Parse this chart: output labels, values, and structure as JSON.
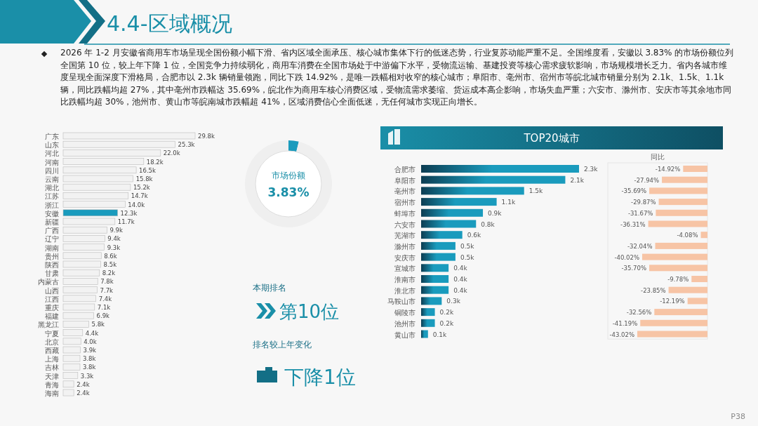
{
  "chart_data": [
    {
      "type": "other",
      "title": "4.4-区域概况",
      "annotations": [
        "2026 年 1-2 月安徽省商用车市场呈现全国份额小幅下滑、省内区域全面承压、核心城市集体下行的低迷态势，行业复苏动能严重不足。全国维度看，安徽以 3.83% 的市场份额位列全国第 10 位，较上年下降 1 位，全国竞争力持续弱化，商用车消费在全国市场处于中游偏下水平，受物流运输、基建投资等核心需求疲软影响，市场规模增长乏力。省内各城市维度呈现全面深度下滑格局，合肥市以 2.3k 辆销量领跑，同比下跌 14.92%，是唯一跌幅相对收窄的核心城市；阜阳市、亳州市、宿州市等皖北城市销量分别为 2.1k、1.5k、1.1k 辆，同比跌幅均超 27%，其中亳州市跌幅达 35.69%，皖北作为商用车核心消费区域，受物流需求萎缩、货运成本高企影响，市场失血严重；六安市、滁州市、安庆市等其余地市同比跌幅均超 30%，池州市、黄山市等皖南城市跌幅超 41%，区域消费信心全面低迷，无任何城市实现正向增长。",
        "P38"
      ]
    },
    {
      "type": "bar",
      "orientation": "horizontal",
      "categories": [
        "广东",
        "山东",
        "河北",
        "河南",
        "四川",
        "云南",
        "湖北",
        "江苏",
        "浙江",
        "安徽",
        "新疆",
        "广西",
        "辽宁",
        "湖南",
        "贵州",
        "陕西",
        "甘肃",
        "内蒙古",
        "山西",
        "江西",
        "重庆",
        "福建",
        "黑龙江",
        "宁夏",
        "北京",
        "西藏",
        "上海",
        "吉林",
        "天津",
        "青海",
        "海南"
      ],
      "values": [
        29.8,
        25.3,
        22.0,
        18.2,
        16.5,
        15.8,
        15.2,
        14.7,
        14.0,
        12.3,
        11.7,
        9.9,
        9.4,
        9.3,
        8.6,
        8.5,
        8.2,
        7.8,
        7.7,
        7.4,
        7.1,
        6.9,
        5.8,
        4.4,
        4.0,
        3.9,
        3.8,
        3.8,
        3.3,
        2.4,
        2.4
      ],
      "value_labels": [
        "29.8k",
        "25.3k",
        "22.0k",
        "18.2k",
        "16.5k",
        "15.8k",
        "15.2k",
        "14.7k",
        "14.0k",
        "12.3k",
        "11.7k",
        "9.9k",
        "9.4k",
        "9.3k",
        "8.6k",
        "8.5k",
        "8.2k",
        "7.8k",
        "7.7k",
        "7.4k",
        "7.1k",
        "6.9k",
        "5.8k",
        "4.4k",
        "4.0k",
        "3.9k",
        "3.8k",
        "3.8k",
        "3.3k",
        "2.4k",
        "2.4k"
      ],
      "colors": [
        "#f2f2f2",
        "#f2f2f2",
        "#f2f2f2",
        "#f2f2f2",
        "#f2f2f2",
        "#f2f2f2",
        "#f2f2f2",
        "#f2f2f2",
        "#f2f2f2",
        "#1a9bbd",
        "#f2f2f2",
        "#f2f2f2",
        "#f2f2f2",
        "#f2f2f2",
        "#f2f2f2",
        "#f2f2f2",
        "#f2f2f2",
        "#f2f2f2",
        "#f2f2f2",
        "#f2f2f2",
        "#f2f2f2",
        "#f2f2f2",
        "#f2f2f2",
        "#f2f2f2",
        "#f2f2f2",
        "#f2f2f2",
        "#f2f2f2",
        "#f2f2f2",
        "#f2f2f2",
        "#f2f2f2",
        "#f2f2f2"
      ]
    },
    {
      "type": "donut",
      "title": "市场份额",
      "categories": [
        null,
        null
      ],
      "values": [
        3.83,
        96.17
      ],
      "colors": [
        "#1a9bbd",
        "#efefef"
      ],
      "annotations": [
        "3.83%"
      ]
    },
    {
      "type": "other",
      "annotations": [
        "本期排名",
        "第10位",
        "排名较上年变化",
        "下降1位"
      ]
    },
    {
      "type": "bar",
      "orientation": "horizontal",
      "title": "TOP20城市",
      "categories": [
        "合肥市",
        "阜阳市",
        "亳州市",
        "宿州市",
        "蚌埠市",
        "六安市",
        "芜湖市",
        "滁州市",
        "安庆市",
        "宣城市",
        "淮南市",
        "淮北市",
        "马鞍山市",
        "铜陵市",
        "池州市",
        "黄山市"
      ],
      "values": [
        2.3,
        2.1,
        1.5,
        1.1,
        0.9,
        0.8,
        0.6,
        0.5,
        0.5,
        0.4,
        0.4,
        0.4,
        0.3,
        0.2,
        0.2,
        0.1
      ],
      "value_labels": [
        "2.3k",
        "2.1k",
        "1.5k",
        "1.1k",
        "0.9k",
        "0.8k",
        "0.6k",
        "0.5k",
        "0.5k",
        "0.4k",
        "0.4k",
        "0.4k",
        "0.3k",
        "0.2k",
        "0.2k",
        "0.1k"
      ],
      "color": "#1a9bbd"
    },
    {
      "type": "bar",
      "orientation": "horizontal",
      "title": "同比",
      "categories": [
        null,
        null,
        null,
        null,
        null,
        null,
        null,
        null,
        null,
        null,
        null,
        null,
        null,
        null,
        null,
        null
      ],
      "values": [
        -14.92,
        -27.94,
        -35.69,
        -29.87,
        -31.67,
        -36.31,
        -4.08,
        -32.04,
        -40.02,
        -35.7,
        -9.78,
        -23.85,
        -12.19,
        -32.56,
        -41.19,
        -43.02
      ],
      "value_labels": [
        "-14.92%",
        "-27.94%",
        "-35.69%",
        "-29.87%",
        "-31.67%",
        "-36.31%",
        "-4.08%",
        "-32.04%",
        "-40.02%",
        "-35.70%",
        "-9.78%",
        "-23.85%",
        "-12.19%",
        "-32.56%",
        "-41.19%",
        "-43.02%"
      ],
      "color": "#f7c4a5"
    }
  ]
}
